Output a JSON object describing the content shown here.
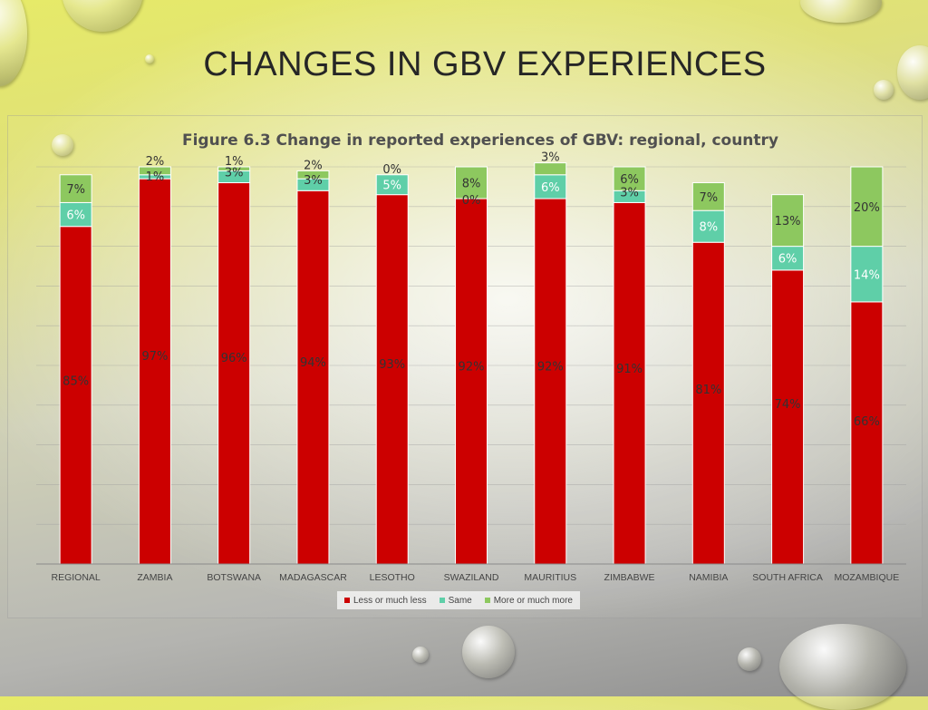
{
  "slide": {
    "title": "CHANGES IN GBV EXPERIENCES"
  },
  "colors": {
    "less": "#cc0000",
    "same": "#5fcfa8",
    "more": "#8dc85f"
  },
  "chart_data": {
    "type": "bar",
    "stacked": true,
    "title": "Figure 6.3 Change in reported experiences of GBV: regional, country",
    "categories": [
      "REGIONAL",
      "ZAMBIA",
      "BOTSWANA",
      "MADAGASCAR",
      "LESOTHO",
      "SWAZILAND",
      "MAURITIUS",
      "ZIMBABWE",
      "NAMIBIA",
      "SOUTH AFRICA",
      "MOZAMBIQUE"
    ],
    "series": [
      {
        "name": "Less or much less",
        "values": [
          85,
          97,
          96,
          94,
          93,
          92,
          92,
          91,
          81,
          74,
          66
        ]
      },
      {
        "name": "Same",
        "values": [
          6,
          1,
          3,
          3,
          5,
          0,
          6,
          3,
          8,
          6,
          14
        ]
      },
      {
        "name": "More or much more",
        "values": [
          7,
          2,
          1,
          2,
          0,
          8,
          3,
          6,
          7,
          13,
          20
        ]
      }
    ],
    "ylim": [
      0,
      100
    ],
    "grid": true,
    "legend": "bottom"
  }
}
